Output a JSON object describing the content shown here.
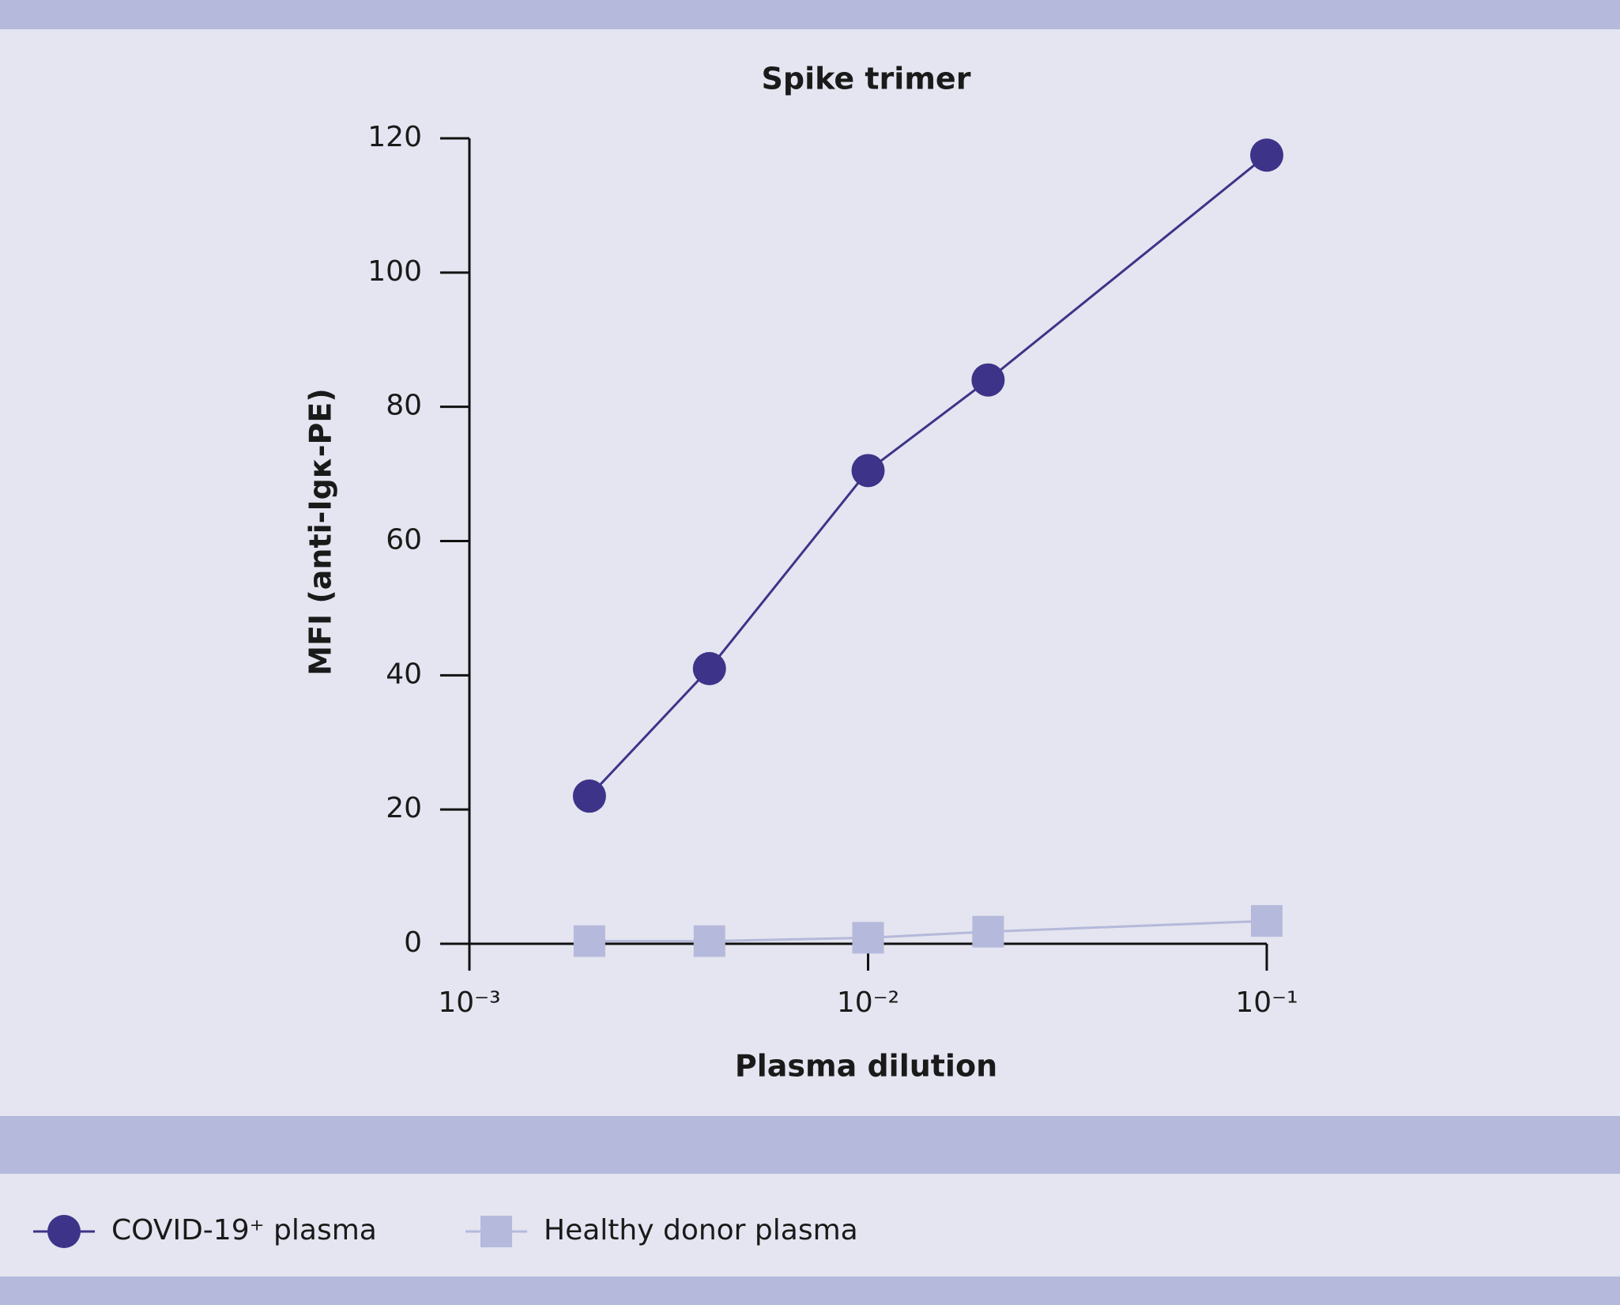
{
  "chart_data": {
    "type": "line",
    "title": "Spike trimer",
    "x_label": "Plasma dilution",
    "y_label": "MFI (anti-Igκ-PE)",
    "x": [
      0.002,
      0.004,
      0.01,
      0.02,
      0.1
    ],
    "series": [
      {
        "name": "COVID-19⁺ plasma",
        "color": "#3d3489",
        "marker": "circle",
        "values": [
          22,
          41,
          70.5,
          84,
          117.5
        ]
      },
      {
        "name": "Healthy donor plasma",
        "color": "#b5b9db",
        "marker": "square",
        "values": [
          0.4,
          0.4,
          0.9,
          1.8,
          3.4
        ]
      }
    ],
    "xlim": [
      0.001,
      0.1
    ],
    "x_log": true,
    "xticks": [
      {
        "value": 0.001,
        "label": "10⁻³"
      },
      {
        "value": 0.01,
        "label": "10⁻²"
      },
      {
        "value": 0.1,
        "label": "10⁻¹"
      }
    ],
    "ylim": [
      0,
      120
    ],
    "yticks": [
      0,
      20,
      40,
      60,
      80,
      100,
      120
    ],
    "grid": false
  }
}
